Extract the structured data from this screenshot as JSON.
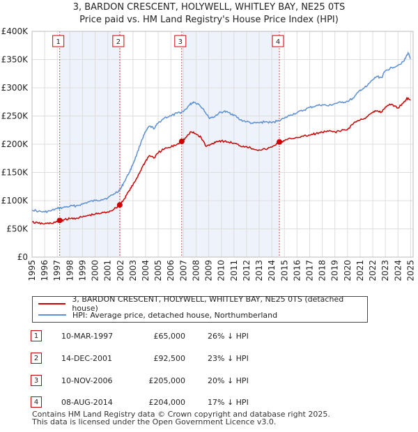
{
  "title": {
    "line1": "3, BARDON CRESCENT, HOLYWELL, WHITLEY BAY, NE25 0TS",
    "line2": "Price paid vs. HM Land Registry's House Price Index (HPI)"
  },
  "chart_data": {
    "type": "line",
    "x_range": [
      1995,
      2025.2
    ],
    "ylim": [
      0,
      400000
    ],
    "y_ticks": [
      0,
      50000,
      100000,
      150000,
      200000,
      250000,
      300000,
      350000,
      400000
    ],
    "y_tick_labels": [
      "£0",
      "£50K",
      "£100K",
      "£150K",
      "£200K",
      "£250K",
      "£300K",
      "£350K",
      "£400K"
    ],
    "x_ticks": [
      1995,
      1996,
      1997,
      1998,
      1999,
      2000,
      2001,
      2002,
      2003,
      2004,
      2005,
      2006,
      2007,
      2008,
      2009,
      2010,
      2011,
      2012,
      2013,
      2014,
      2015,
      2016,
      2017,
      2018,
      2019,
      2020,
      2021,
      2022,
      2023,
      2024,
      2025
    ],
    "x_tick_labels": [
      "1995",
      "1996",
      "1997",
      "1998",
      "1999",
      "2000",
      "2001",
      "2002",
      "2003",
      "2004",
      "2005",
      "2006",
      "2007",
      "2008",
      "2009",
      "2010",
      "2011",
      "2012",
      "2013",
      "2014",
      "2015",
      "2016",
      "2017",
      "2018",
      "2019",
      "2020",
      "2021",
      "2022",
      "2023",
      "2024",
      "2025"
    ],
    "grid": true,
    "shaded_ranges": [
      [
        1997.19,
        2001.95
      ],
      [
        2006.86,
        2014.6
      ]
    ],
    "series": [
      {
        "name": "3, BARDON CRESCENT, HOLYWELL, WHITLEY BAY, NE25 0TS (detached house)",
        "color": "#cc0000",
        "x": [
          1995.0,
          1995.5,
          1996.0,
          1996.5,
          1997.0,
          1997.19,
          1997.5,
          1998.0,
          1998.5,
          1999.0,
          1999.5,
          2000.0,
          2000.5,
          2001.0,
          2001.5,
          2001.95,
          2002.3,
          2002.7,
          2003.0,
          2003.3,
          2003.7,
          2004.0,
          2004.3,
          2004.7,
          2005.0,
          2005.5,
          2006.0,
          2006.5,
          2006.86,
          2007.2,
          2007.6,
          2008.0,
          2008.4,
          2008.8,
          2009.2,
          2009.6,
          2010.0,
          2010.5,
          2011.0,
          2011.5,
          2012.0,
          2012.5,
          2013.0,
          2013.5,
          2014.0,
          2014.6,
          2015.0,
          2015.5,
          2016.0,
          2016.5,
          2017.0,
          2017.5,
          2018.0,
          2018.5,
          2019.0,
          2019.5,
          2020.0,
          2020.5,
          2021.0,
          2021.5,
          2022.0,
          2022.3,
          2022.7,
          2023.0,
          2023.5,
          2024.0,
          2024.5,
          2024.8,
          2025.0
        ],
        "y": [
          62000,
          60000,
          59000,
          60000,
          63000,
          65000,
          66000,
          68000,
          69000,
          71000,
          74000,
          76000,
          78000,
          80000,
          85000,
          92500,
          103000,
          118000,
          128000,
          140000,
          158000,
          170000,
          180000,
          176000,
          185000,
          192000,
          195000,
          200000,
          205000,
          212000,
          222000,
          218000,
          212000,
          196000,
          200000,
          205000,
          206000,
          204000,
          202000,
          197000,
          196000,
          192000,
          190000,
          191000,
          195000,
          204000,
          206000,
          210000,
          212000,
          214000,
          216000,
          219000,
          221000,
          223000,
          222000,
          224000,
          226000,
          238000,
          243000,
          248000,
          256000,
          259000,
          257000,
          266000,
          271000,
          264000,
          276000,
          282000,
          278000
        ]
      },
      {
        "name": "HPI: Average price, detached house, Northumberland",
        "color": "#5b8fd6",
        "x": [
          1995.0,
          1995.5,
          1996.0,
          1996.5,
          1997.0,
          1997.5,
          1998.0,
          1998.5,
          1999.0,
          1999.5,
          2000.0,
          2000.5,
          2001.0,
          2001.5,
          2002.0,
          2002.3,
          2002.7,
          2003.0,
          2003.3,
          2003.7,
          2004.0,
          2004.3,
          2004.7,
          2005.0,
          2005.5,
          2006.0,
          2006.5,
          2007.0,
          2007.5,
          2007.8,
          2008.2,
          2008.6,
          2009.0,
          2009.4,
          2009.8,
          2010.2,
          2010.6,
          2011.0,
          2011.5,
          2012.0,
          2012.5,
          2013.0,
          2013.5,
          2014.0,
          2014.5,
          2015.0,
          2015.5,
          2016.0,
          2016.5,
          2017.0,
          2017.5,
          2018.0,
          2018.5,
          2019.0,
          2019.5,
          2020.0,
          2020.5,
          2021.0,
          2021.5,
          2022.0,
          2022.3,
          2022.7,
          2023.0,
          2023.5,
          2024.0,
          2024.5,
          2024.8,
          2025.0
        ],
        "y": [
          84000,
          81000,
          80000,
          82000,
          86000,
          88000,
          90000,
          91000,
          94000,
          98000,
          100000,
          102000,
          105000,
          112000,
          120000,
          133000,
          150000,
          165000,
          182000,
          208000,
          222000,
          232000,
          228000,
          238000,
          247000,
          250000,
          255000,
          258000,
          270000,
          275000,
          271000,
          262000,
          247000,
          248000,
          255000,
          258000,
          256000,
          252000,
          243000,
          240000,
          237000,
          238000,
          240000,
          238000,
          242000,
          246000,
          252000,
          256000,
          260000,
          265000,
          268000,
          270000,
          268000,
          272000,
          274000,
          276000,
          282000,
          296000,
          302000,
          314000,
          320000,
          318000,
          330000,
          336000,
          340000,
          348000,
          362000,
          352000
        ]
      }
    ],
    "sales": [
      {
        "label": "1",
        "date": "10-MAR-1997",
        "x": 1997.19,
        "price": 65000,
        "hpi": "26% ↓ HPI"
      },
      {
        "label": "2",
        "date": "14-DEC-2001",
        "x": 2001.95,
        "price": 92500,
        "hpi": "23% ↓ HPI"
      },
      {
        "label": "3",
        "date": "10-NOV-2006",
        "x": 2006.86,
        "price": 205000,
        "hpi": "20% ↓ HPI"
      },
      {
        "label": "4",
        "date": "08-AUG-2014",
        "x": 2014.6,
        "price": 204000,
        "hpi": "17% ↓ HPI"
      }
    ],
    "marker_color": "#cc0000",
    "shade_color": "#eef2fb"
  },
  "legend": {
    "red_label": "3, BARDON CRESCENT, HOLYWELL, WHITLEY BAY, NE25 0TS (detached house)",
    "blue_label": "HPI: Average price, detached house, Northumberland"
  },
  "table": [
    {
      "num": "1",
      "date": "10-MAR-1997",
      "price": "£65,000",
      "hpi": "26% ↓ HPI"
    },
    {
      "num": "2",
      "date": "14-DEC-2001",
      "price": "£92,500",
      "hpi": "23% ↓ HPI"
    },
    {
      "num": "3",
      "date": "10-NOV-2006",
      "price": "£205,000",
      "hpi": "20% ↓ HPI"
    },
    {
      "num": "4",
      "date": "08-AUG-2014",
      "price": "£204,000",
      "hpi": "17% ↓ HPI"
    }
  ],
  "footer": {
    "line1": "Contains HM Land Registry data © Crown copyright and database right 2025.",
    "line2": "This data is licensed under the Open Government Licence v3.0."
  }
}
